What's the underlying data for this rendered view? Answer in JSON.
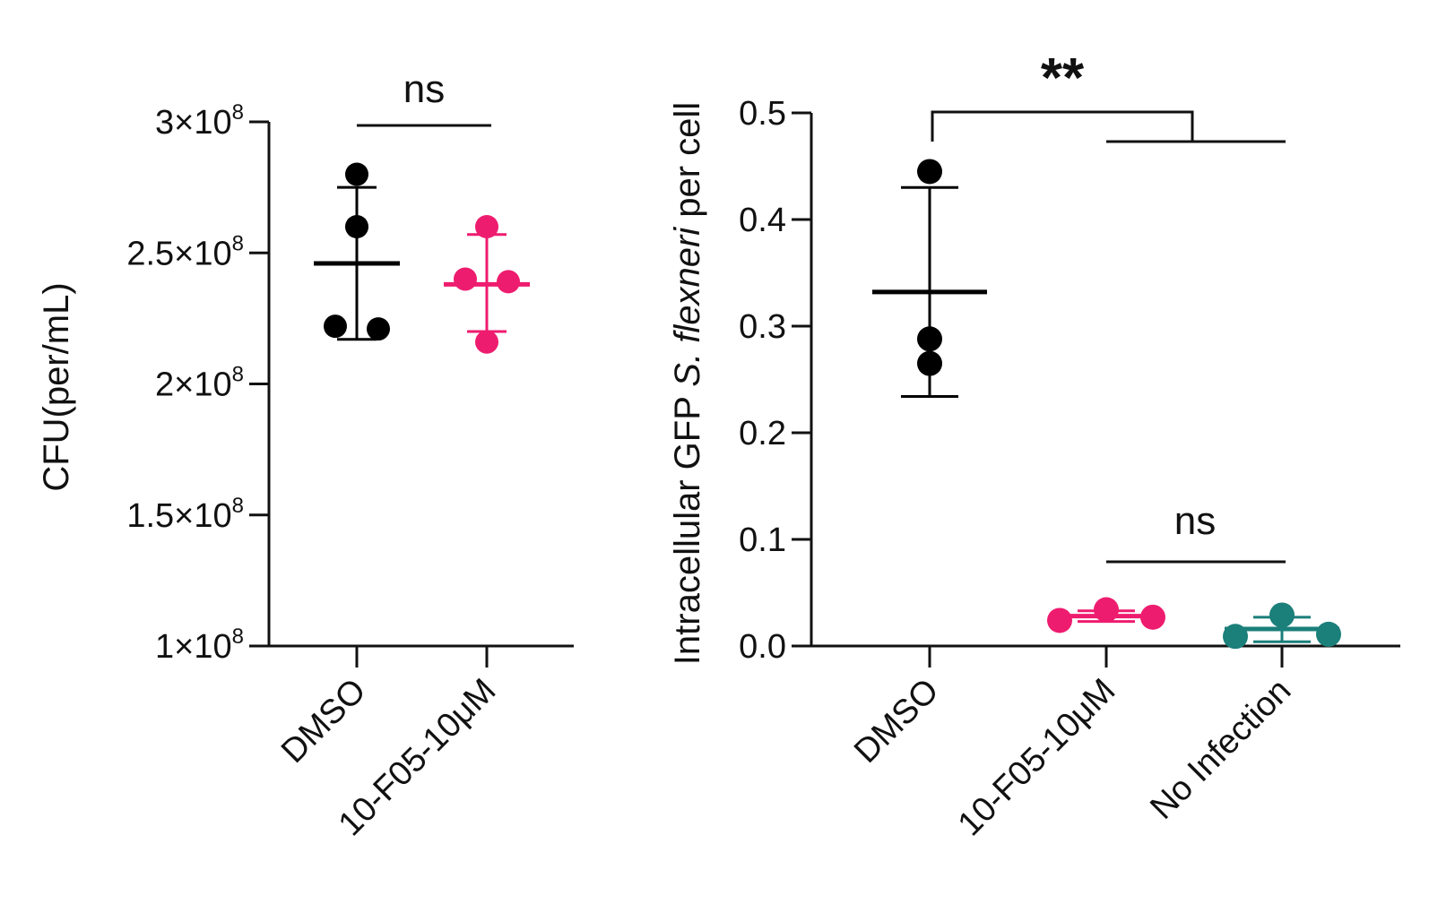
{
  "chart_data": [
    {
      "type": "scatter",
      "ylabel": "CFU(per/mL)",
      "ylim": [
        100000000,
        300000000
      ],
      "yticks": [
        {
          "value": 100000000,
          "mantissa": "1",
          "exponent": "8"
        },
        {
          "value": 150000000,
          "mantissa": "1.5",
          "exponent": "8"
        },
        {
          "value": 200000000,
          "mantissa": "2",
          "exponent": "8"
        },
        {
          "value": 250000000,
          "mantissa": "2.5",
          "exponent": "8"
        },
        {
          "value": 300000000,
          "mantissa": "3",
          "exponent": "8"
        }
      ],
      "times_sign": "×10",
      "categories": [
        "DMSO",
        "10-F05-10μM"
      ],
      "groups": [
        {
          "category": "DMSO",
          "color": "#000000",
          "points": [
            280000000,
            260000000,
            222000000,
            221000000
          ],
          "mean": 246000000,
          "sd_low": 217000000,
          "sd_high": 275000000
        },
        {
          "category": "10-F05-10μM",
          "color": "#ee1c6f",
          "points": [
            260000000,
            240000000,
            239000000,
            216000000
          ],
          "mean": 238000000,
          "sd_low": 220000000,
          "sd_high": 257000000
        }
      ],
      "significance": [
        {
          "from": 0,
          "to": 1,
          "label": "ns"
        }
      ]
    },
    {
      "type": "scatter",
      "ylabel_parts": [
        "Intracellular GFP ",
        "S. flexneri",
        " per cell"
      ],
      "ylim": [
        0.0,
        0.5
      ],
      "yticks": [
        "0.0",
        "0.1",
        "0.2",
        "0.3",
        "0.4",
        "0.5"
      ],
      "categories": [
        "DMSO",
        "10-F05-10μM",
        "No Infection"
      ],
      "groups": [
        {
          "category": "DMSO",
          "color": "#000000",
          "points": [
            0.445,
            0.288,
            0.265
          ],
          "mean": 0.332,
          "sd_low": 0.234,
          "sd_high": 0.43
        },
        {
          "category": "10-F05-10μM",
          "color": "#ee1c6f",
          "points": [
            0.024,
            0.034,
            0.027
          ],
          "mean": 0.028,
          "sd_low": 0.023,
          "sd_high": 0.033
        },
        {
          "category": "No Infection",
          "color": "#1b7f7a",
          "points": [
            0.009,
            0.029,
            0.011
          ],
          "mean": 0.016,
          "sd_low": 0.004,
          "sd_high": 0.027
        }
      ],
      "significance": [
        {
          "from": 0,
          "to": [
            1,
            2
          ],
          "label": "**"
        },
        {
          "from": 1,
          "to": 2,
          "label": "ns"
        }
      ]
    }
  ]
}
